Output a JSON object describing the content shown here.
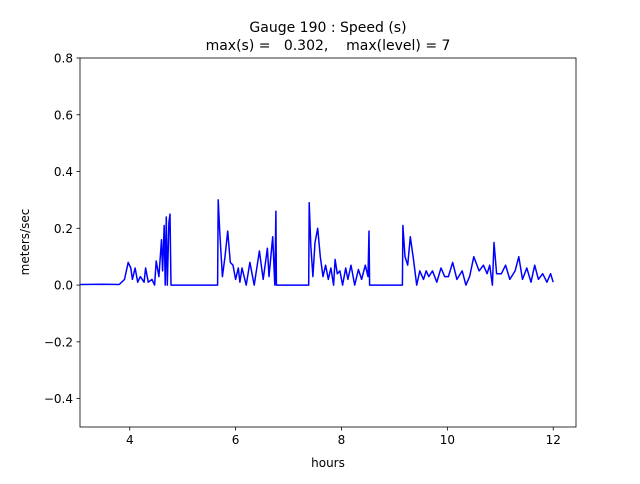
{
  "chart_data": {
    "type": "line",
    "title": "Gauge 190 : Speed (s)",
    "subtitle": "max(s) =   0.302,    max(level) = 7",
    "xlabel": "hours",
    "ylabel": "meters/sec",
    "xlim": [
      3.06,
      12.43
    ],
    "ylim": [
      -0.5,
      0.8
    ],
    "xticks": [
      4,
      6,
      8,
      10,
      12
    ],
    "xtick_labels": [
      "4",
      "6",
      "8",
      "10",
      "12"
    ],
    "yticks": [
      -0.4,
      -0.2,
      0.0,
      0.2,
      0.4,
      0.6,
      0.8
    ],
    "ytick_labels": [
      "−0.4",
      "−0.2",
      "0.0",
      "0.2",
      "0.4",
      "0.6",
      "0.8"
    ],
    "grid": false,
    "series": [
      {
        "name": "speed",
        "color": "#0000ff",
        "x": [
          3.06,
          3.5,
          3.8,
          3.9,
          3.97,
          4.02,
          4.05,
          4.1,
          4.15,
          4.2,
          4.27,
          4.3,
          4.35,
          4.42,
          4.47,
          4.5,
          4.55,
          4.6,
          4.62,
          4.65,
          4.67,
          4.69,
          4.71,
          4.74,
          4.76,
          4.78,
          5.66,
          5.67,
          5.7,
          5.75,
          5.8,
          5.85,
          5.9,
          5.95,
          6.0,
          6.05,
          6.08,
          6.12,
          6.2,
          6.27,
          6.35,
          6.45,
          6.52,
          6.6,
          6.63,
          6.7,
          6.74,
          6.76,
          6.77,
          7.38,
          7.39,
          7.42,
          7.46,
          7.5,
          7.55,
          7.6,
          7.65,
          7.7,
          7.75,
          7.8,
          7.85,
          7.88,
          7.92,
          7.97,
          8.02,
          8.08,
          8.12,
          8.18,
          8.25,
          8.32,
          8.38,
          8.45,
          8.5,
          8.52,
          8.53,
          9.15,
          9.16,
          9.2,
          9.25,
          9.3,
          9.36,
          9.42,
          9.48,
          9.55,
          9.6,
          9.65,
          9.72,
          9.8,
          9.88,
          9.95,
          10.02,
          10.1,
          10.18,
          10.28,
          10.35,
          10.42,
          10.5,
          10.6,
          10.68,
          10.75,
          10.8,
          10.85,
          10.88,
          10.93,
          11.02,
          11.1,
          11.18,
          11.28,
          11.35,
          11.42,
          11.5,
          11.58,
          11.65,
          11.72,
          11.8,
          11.88,
          11.95,
          12.0
        ],
        "y": [
          0.002,
          0.003,
          0.002,
          0.02,
          0.08,
          0.06,
          0.02,
          0.06,
          0.01,
          0.03,
          0.01,
          0.06,
          0.01,
          0.02,
          0.0,
          0.085,
          0.03,
          0.16,
          0.05,
          0.21,
          0.0,
          0.24,
          0.0,
          0.22,
          0.25,
          0.0,
          0.0,
          0.3,
          0.19,
          0.03,
          0.1,
          0.19,
          0.08,
          0.07,
          0.02,
          0.06,
          0.01,
          0.06,
          0.0,
          0.08,
          0.0,
          0.12,
          0.02,
          0.13,
          0.03,
          0.17,
          0.0,
          0.26,
          0.0,
          0.0,
          0.29,
          0.14,
          0.03,
          0.15,
          0.2,
          0.1,
          0.03,
          0.07,
          0.02,
          0.06,
          0.0,
          0.09,
          0.04,
          0.05,
          0.0,
          0.06,
          0.02,
          0.07,
          0.0,
          0.055,
          0.02,
          0.07,
          0.03,
          0.19,
          0.0,
          0.0,
          0.21,
          0.1,
          0.07,
          0.17,
          0.09,
          0.0,
          0.05,
          0.02,
          0.05,
          0.03,
          0.05,
          0.01,
          0.06,
          0.03,
          0.03,
          0.08,
          0.02,
          0.05,
          0.0,
          0.03,
          0.1,
          0.05,
          0.07,
          0.04,
          0.07,
          0.0,
          0.15,
          0.04,
          0.04,
          0.07,
          0.02,
          0.05,
          0.1,
          0.02,
          0.06,
          0.01,
          0.07,
          0.02,
          0.04,
          0.01,
          0.04,
          0.01
        ]
      }
    ]
  }
}
